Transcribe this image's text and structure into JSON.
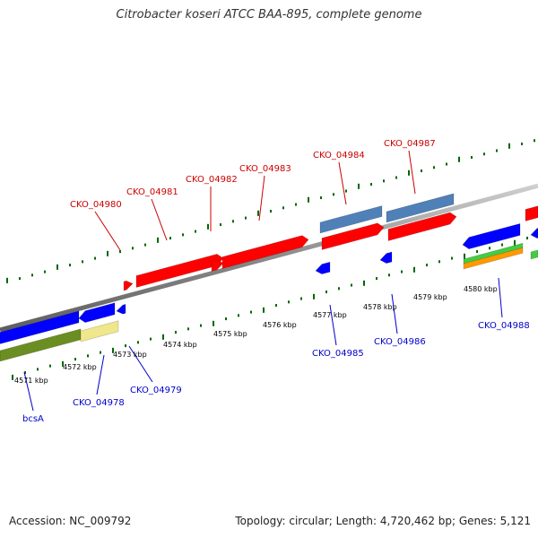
{
  "title": "Citrobacter koseri ATCC BAA-895, complete genome",
  "footer": {
    "accession": "Accession: NC_009792",
    "topology": "Topology: circular; Length: 4,720,462 bp; Genes: 5,121"
  },
  "colors": {
    "forward_gene": "#ff0000",
    "reverse_gene": "#0000ff",
    "forward_label": "#cc0000",
    "reverse_label": "#0000cc",
    "backbone": "#888888",
    "tick_mark": "#006600",
    "steelblue_feature": "#4f80b8",
    "olive_feature": "#6b8e23",
    "pale_yellow_feature": "#f0e68c",
    "green_feature": "#44cc44",
    "orange_feature": "#ff9900"
  },
  "ruler": {
    "unit": "kbp",
    "labels": [
      "4571 kbp",
      "4572 kbp",
      "4573 kbp",
      "4574 kbp",
      "4575 kbp",
      "4576 kbp",
      "4577 kbp",
      "4578 kbp",
      "4579 kbp",
      "4580 kbp"
    ]
  },
  "forward_genes": [
    {
      "label": "CKO_04980"
    },
    {
      "label": "CKO_04981"
    },
    {
      "label": "CKO_04982"
    },
    {
      "label": "CKO_04983"
    },
    {
      "label": "CKO_04984"
    },
    {
      "label": "CKO_04987"
    }
  ],
  "reverse_genes": [
    {
      "label": "bcsA"
    },
    {
      "label": "CKO_04978"
    },
    {
      "label": "CKO_04979"
    },
    {
      "label": "CKO_04985"
    },
    {
      "label": "CKO_04986"
    },
    {
      "label": "CKO_04988"
    }
  ]
}
